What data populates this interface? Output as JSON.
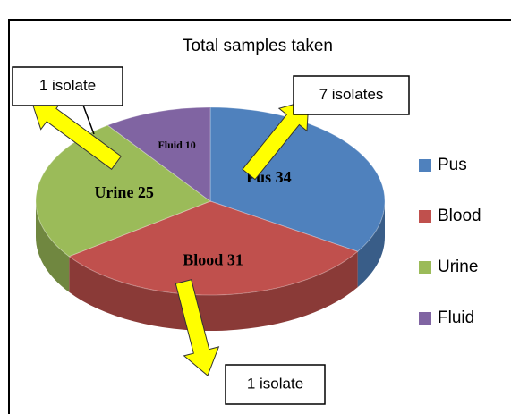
{
  "chart_data": {
    "type": "pie",
    "title": "Total samples taken",
    "categories": [
      "Pus",
      "Blood",
      "Urine",
      "Fluid"
    ],
    "values": [
      34,
      31,
      25,
      10
    ],
    "value_labels": [
      "Pus 34",
      "Blood 31",
      "Urine 25",
      "Fluid 10"
    ],
    "colors": [
      "#4f81bd",
      "#c0504d",
      "#9bbb59",
      "#8064a2"
    ],
    "legend": "right",
    "annotations": [
      "1 isolate",
      "7 isolates",
      "1 isolate"
    ]
  }
}
